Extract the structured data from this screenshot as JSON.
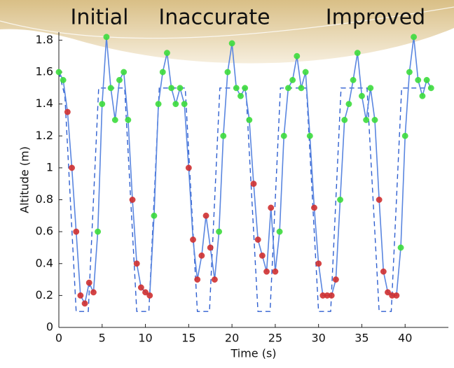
{
  "chart_data": {
    "type": "line",
    "annotations": [
      "Initial",
      "Inaccurate",
      "Improved"
    ],
    "xlabel": "Time (s)",
    "ylabel": "Altitude (m)",
    "xlim": [
      0,
      45
    ],
    "ylim": [
      0,
      1.85
    ],
    "xticks": [
      0,
      5,
      10,
      15,
      20,
      25,
      30,
      35,
      40
    ],
    "yticks": [
      0,
      0.2,
      0.4,
      0.6,
      0.8,
      1,
      1.2,
      1.4,
      1.6,
      1.8
    ],
    "series": [
      {
        "color": "#2f5fd0",
        "linestyle": "dashed",
        "x": [
          0,
          0.7,
          2,
          3.4,
          4.6,
          5.2,
          7.6,
          9,
          10.4,
          11.6,
          12.2,
          14.6,
          16,
          17.4,
          18.6,
          19.2,
          21.6,
          23,
          24.4,
          25.6,
          26.2,
          28.6,
          30,
          31.4,
          32.6,
          33.2,
          35.6,
          37,
          38.4,
          39.6,
          40.2,
          43
        ],
        "values": [
          1.6,
          1.45,
          0.1,
          0.1,
          1.5,
          1.5,
          1.5,
          0.1,
          0.1,
          1.5,
          1.5,
          1.5,
          0.1,
          0.1,
          1.5,
          1.5,
          1.5,
          0.1,
          0.1,
          1.5,
          1.5,
          1.5,
          0.1,
          0.1,
          1.5,
          1.5,
          1.5,
          0.1,
          0.1,
          1.5,
          1.5,
          1.5
        ]
      },
      {
        "color": "#5a86e0",
        "linestyle": "solid",
        "x": [
          0,
          0.5,
          1,
          1.5,
          2,
          2.5,
          3,
          3.5,
          4,
          4.5,
          5,
          5.5,
          6,
          6.5,
          7,
          7.5,
          8,
          8.5,
          9,
          9.5,
          10,
          10.5,
          11,
          11.5,
          12,
          12.5,
          13,
          13.5,
          14,
          14.5,
          15,
          15.5,
          16,
          16.5,
          17,
          17.5,
          18,
          18.5,
          19,
          19.5,
          20,
          20.5,
          21,
          21.5,
          22,
          22.5,
          23,
          23.5,
          24,
          24.5,
          25,
          25.5,
          26,
          26.5,
          27,
          27.5,
          28,
          28.5,
          29,
          29.5,
          30,
          30.5,
          31,
          31.5,
          32,
          32.5,
          33,
          33.5,
          34,
          34.5,
          35,
          35.5,
          36,
          36.5,
          37,
          37.5,
          38,
          38.5,
          39,
          39.5,
          40,
          40.5,
          41,
          41.5,
          42,
          42.5,
          43
        ],
        "values": [
          1.6,
          1.55,
          1.35,
          1.0,
          0.6,
          0.2,
          0.15,
          0.28,
          0.22,
          0.6,
          1.4,
          1.82,
          1.5,
          1.3,
          1.55,
          1.6,
          1.3,
          0.8,
          0.4,
          0.25,
          0.22,
          0.2,
          0.7,
          1.4,
          1.6,
          1.72,
          1.5,
          1.4,
          1.5,
          1.4,
          1.0,
          0.55,
          0.3,
          0.45,
          0.7,
          0.5,
          0.3,
          0.6,
          1.2,
          1.6,
          1.78,
          1.5,
          1.45,
          1.5,
          1.3,
          0.9,
          0.55,
          0.45,
          0.35,
          0.75,
          0.35,
          0.6,
          1.2,
          1.5,
          1.55,
          1.7,
          1.5,
          1.6,
          1.2,
          0.75,
          0.4,
          0.2,
          0.2,
          0.2,
          0.3,
          0.8,
          1.3,
          1.4,
          1.55,
          1.72,
          1.45,
          1.3,
          1.5,
          1.3,
          0.8,
          0.35,
          0.22,
          0.2,
          0.2,
          0.5,
          1.2,
          1.6,
          1.82,
          1.55,
          1.45,
          1.55,
          1.5
        ],
        "marker_colors": [
          "#3ddc3d",
          "#3ddc3d",
          "#d03030",
          "#d03030",
          "#d03030",
          "#d03030",
          "#d03030",
          "#d03030",
          "#d03030",
          "#3ddc3d",
          "#3ddc3d",
          "#3ddc3d",
          "#3ddc3d",
          "#3ddc3d",
          "#3ddc3d",
          "#3ddc3d",
          "#3ddc3d",
          "#d03030",
          "#d03030",
          "#d03030",
          "#d03030",
          "#d03030",
          "#3ddc3d",
          "#3ddc3d",
          "#3ddc3d",
          "#3ddc3d",
          "#3ddc3d",
          "#3ddc3d",
          "#3ddc3d",
          "#3ddc3d",
          "#d03030",
          "#d03030",
          "#d03030",
          "#d03030",
          "#d03030",
          "#d03030",
          "#d03030",
          "#3ddc3d",
          "#3ddc3d",
          "#3ddc3d",
          "#3ddc3d",
          "#3ddc3d",
          "#3ddc3d",
          "#3ddc3d",
          "#3ddc3d",
          "#d03030",
          "#d03030",
          "#d03030",
          "#d03030",
          "#d03030",
          "#d03030",
          "#3ddc3d",
          "#3ddc3d",
          "#3ddc3d",
          "#3ddc3d",
          "#3ddc3d",
          "#3ddc3d",
          "#3ddc3d",
          "#3ddc3d",
          "#d03030",
          "#d03030",
          "#d03030",
          "#d03030",
          "#d03030",
          "#d03030",
          "#3ddc3d",
          "#3ddc3d",
          "#3ddc3d",
          "#3ddc3d",
          "#3ddc3d",
          "#3ddc3d",
          "#3ddc3d",
          "#3ddc3d",
          "#3ddc3d",
          "#d03030",
          "#d03030",
          "#d03030",
          "#d03030",
          "#d03030",
          "#3ddc3d",
          "#3ddc3d",
          "#3ddc3d",
          "#3ddc3d",
          "#3ddc3d",
          "#3ddc3d",
          "#3ddc3d",
          "#3ddc3d"
        ]
      }
    ]
  }
}
